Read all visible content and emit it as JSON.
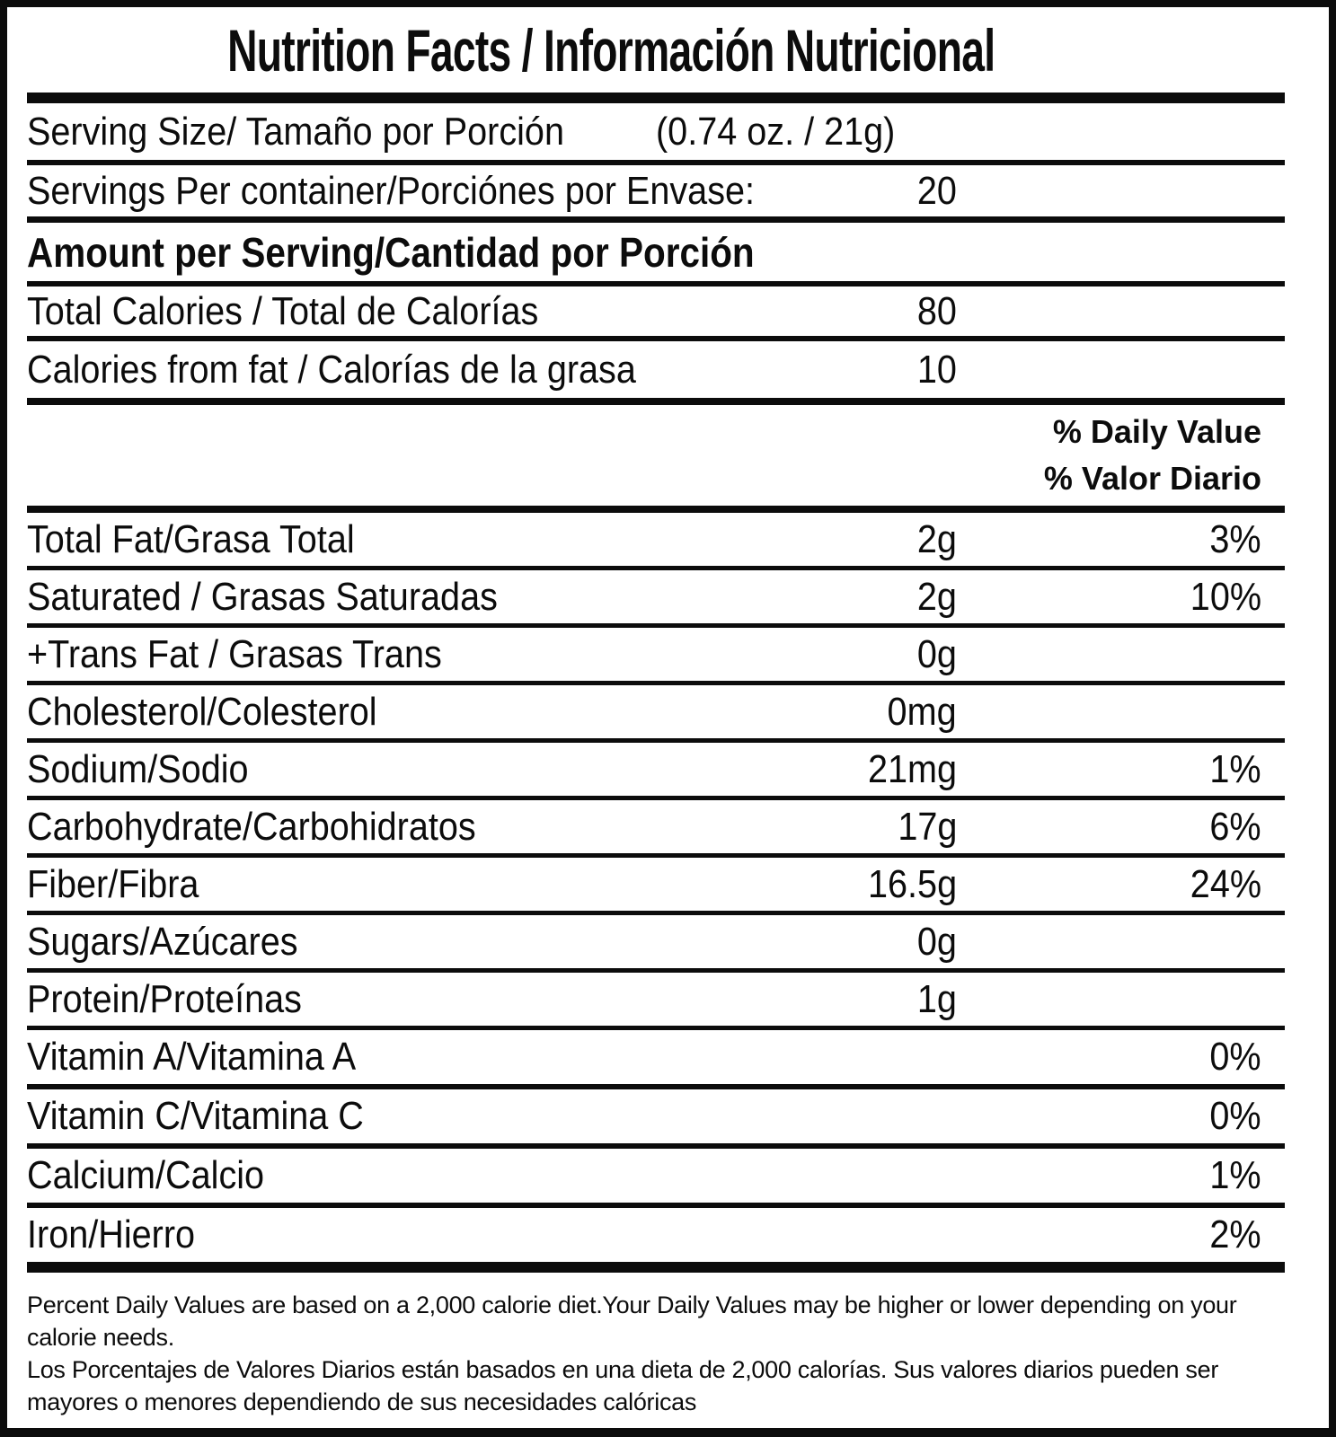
{
  "label": {
    "title": "Nutrition Facts / Información Nutricional",
    "serving": {
      "label": "Serving Size/ Tamaño por Porción",
      "value": "(0.74 oz. / 21g)"
    },
    "servings_per_container": {
      "label": "Servings Per container/Porciónes por Envase:",
      "value": "20"
    },
    "amount_heading": "Amount per Serving/Cantidad por Porción",
    "calories": [
      {
        "label": "Total Calories / Total de Calorías",
        "value": "80"
      },
      {
        "label": "Calories from fat / Calorías de la grasa",
        "value": "10"
      }
    ],
    "daily_value_header": {
      "en": "% Daily Value",
      "es": "% Valor Diario"
    },
    "nutrients": [
      {
        "label": "Total Fat/Grasa Total",
        "amount": "2g",
        "dv": "3%"
      },
      {
        "label": "Saturated / Grasas Saturadas",
        "amount": "2g",
        "dv": "10%"
      },
      {
        "label": "+Trans Fat / Grasas Trans",
        "amount": "0g",
        "dv": ""
      },
      {
        "label": "Cholesterol/Colesterol",
        "amount": "0mg",
        "dv": ""
      },
      {
        "label": "Sodium/Sodio",
        "amount": "21mg",
        "dv": "1%"
      },
      {
        "label": "Carbohydrate/Carbohidratos",
        "amount": "17g",
        "dv": "6%"
      },
      {
        "label": "Fiber/Fibra",
        "amount": "16.5g",
        "dv": "24%"
      },
      {
        "label": "Sugars/Azúcares",
        "amount": "0g",
        "dv": ""
      },
      {
        "label": "Protein/Proteínas",
        "amount": "1g",
        "dv": ""
      },
      {
        "label": "Vitamin A/Vitamina A",
        "amount": "",
        "dv": "0%"
      },
      {
        "label": "Vitamin C/Vitamina C",
        "amount": "",
        "dv": "0%"
      },
      {
        "label": "Calcium/Calcio",
        "amount": "",
        "dv": "1%"
      },
      {
        "label": "Iron/Hierro",
        "amount": "",
        "dv": "2%"
      }
    ],
    "footnote": {
      "lines": [
        "Percent Daily Values are based on a 2,000 calorie diet.Your Daily Values may be higher or lower depending on your",
        "calorie needs.",
        "Los Porcentajes de Valores Diarios están basados en una dieta de 2,000 calorías. Sus valores diarios pueden ser",
        "mayores o menores dependiendo de sus necesidades calóricas"
      ]
    },
    "colors": {
      "ink": "#0c0c0c",
      "background": "#ffffff"
    }
  }
}
